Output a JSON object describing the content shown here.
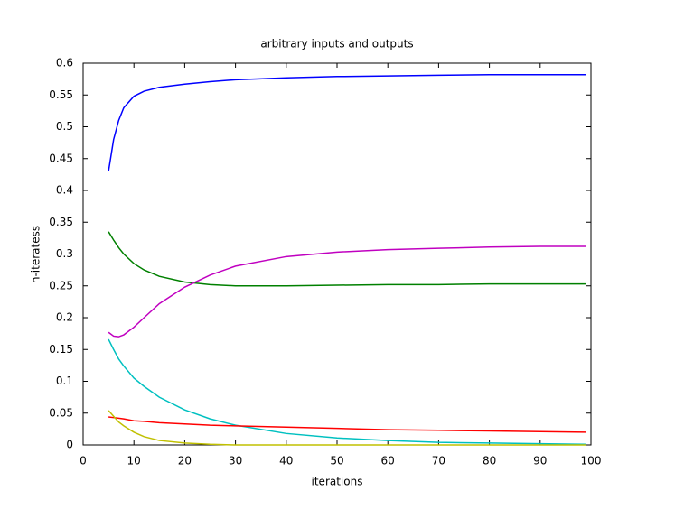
{
  "chart_data": {
    "type": "line",
    "title": "arbitrary inputs and outputs",
    "x_label": "iterations",
    "y_label": "h-iteratess",
    "x": [
      5,
      6,
      7,
      8,
      10,
      12,
      15,
      20,
      25,
      30,
      40,
      50,
      60,
      70,
      80,
      90,
      99
    ],
    "series": [
      {
        "color": "#0000ff",
        "values": [
          0.43,
          0.48,
          0.51,
          0.53,
          0.548,
          0.556,
          0.562,
          0.567,
          0.571,
          0.574,
          0.577,
          0.579,
          0.58,
          0.581,
          0.582,
          0.582,
          0.582
        ]
      },
      {
        "color": "#008000",
        "values": [
          0.335,
          0.322,
          0.31,
          0.3,
          0.285,
          0.275,
          0.265,
          0.256,
          0.252,
          0.25,
          0.25,
          0.251,
          0.252,
          0.252,
          0.253,
          0.253,
          0.253
        ]
      },
      {
        "color": "#c000c0",
        "values": [
          0.177,
          0.171,
          0.17,
          0.173,
          0.185,
          0.2,
          0.222,
          0.248,
          0.267,
          0.281,
          0.296,
          0.303,
          0.307,
          0.309,
          0.311,
          0.312,
          0.312
        ]
      },
      {
        "color": "#00c0c0",
        "values": [
          0.166,
          0.15,
          0.135,
          0.124,
          0.105,
          0.092,
          0.075,
          0.055,
          0.041,
          0.031,
          0.018,
          0.011,
          0.007,
          0.004,
          0.003,
          0.002,
          0.001
        ]
      },
      {
        "color": "#ff0000",
        "values": [
          0.044,
          0.043,
          0.042,
          0.041,
          0.038,
          0.037,
          0.035,
          0.033,
          0.031,
          0.03,
          0.028,
          0.026,
          0.024,
          0.023,
          0.022,
          0.021,
          0.02
        ]
      },
      {
        "color": "#c0c000",
        "values": [
          0.054,
          0.045,
          0.036,
          0.03,
          0.02,
          0.013,
          0.007,
          0.003,
          0.001,
          0,
          0,
          0,
          0,
          0,
          0,
          0,
          0
        ]
      }
    ],
    "xlim": [
      0,
      100
    ],
    "xticks": [
      0,
      10,
      20,
      30,
      40,
      50,
      60,
      70,
      80,
      90,
      100
    ],
    "ylim": [
      0,
      0.6
    ],
    "yticks": [
      0,
      0.05,
      0.1,
      0.15,
      0.2,
      0.25,
      0.3,
      0.35,
      0.4,
      0.45,
      0.5,
      0.55,
      0.6
    ]
  }
}
